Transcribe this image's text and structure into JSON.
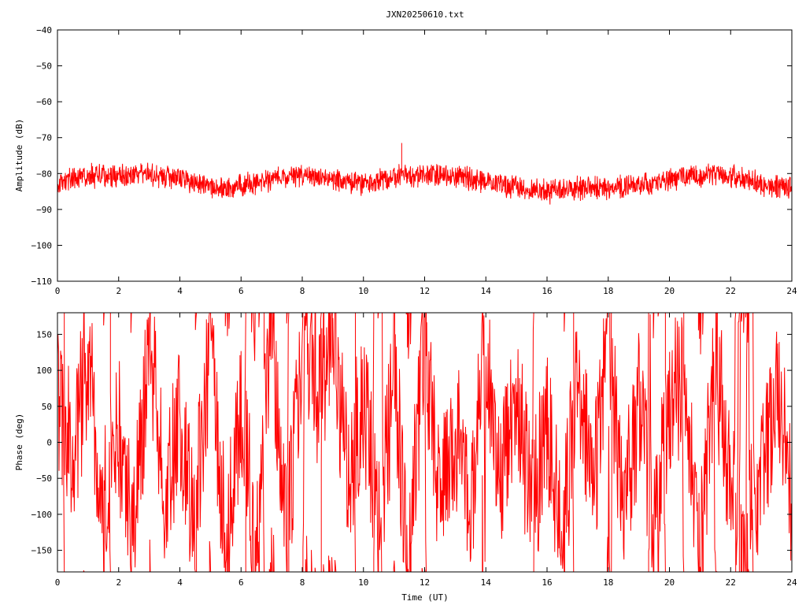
{
  "page_title": "JXN20250610.txt",
  "chart_data": [
    {
      "type": "line",
      "title": "",
      "xlabel": "",
      "ylabel": "Amplitude (dB)",
      "xlim": [
        0,
        24
      ],
      "ylim": [
        -110,
        -40
      ],
      "x_ticks": [
        0,
        2,
        4,
        6,
        8,
        10,
        12,
        14,
        16,
        18,
        20,
        22,
        24
      ],
      "x_tick_labels": [
        "0",
        "2",
        "4",
        "6",
        "8",
        "10",
        "12",
        "14",
        "16",
        "18",
        "20",
        "22",
        "24"
      ],
      "y_ticks": [
        -40,
        -50,
        -60,
        -70,
        -80,
        -90,
        -100,
        -110
      ],
      "y_tick_labels": [
        "−40",
        "−50",
        "−60",
        "−70",
        "−80",
        "−90",
        "−100",
        "−110"
      ],
      "grid": false,
      "legend": "none",
      "series_color": "#ff0000",
      "series": [
        {
          "x": [
            0,
            0.5,
            1,
            1.5,
            2,
            2.5,
            3,
            3.5,
            4,
            4.5,
            5,
            5.5,
            6,
            6.5,
            7,
            7.5,
            8,
            8.5,
            9,
            9.5,
            10,
            10.5,
            11,
            11.5,
            12,
            12.5,
            13,
            13.5,
            14,
            14.5,
            15,
            15.5,
            16,
            16.5,
            17,
            17.5,
            18,
            18.5,
            19,
            19.5,
            20,
            20.5,
            21,
            21.5,
            22,
            22.5,
            23,
            23.5,
            24
          ],
          "center": [
            -82,
            -81.5,
            -81,
            -80.5,
            -80.5,
            -80.5,
            -80.5,
            -81,
            -81.5,
            -82.5,
            -83.5,
            -84,
            -83.5,
            -82.5,
            -81.5,
            -81,
            -80.5,
            -81,
            -82,
            -82.5,
            -82.5,
            -82,
            -81,
            -80.5,
            -80.5,
            -80.5,
            -81,
            -81.5,
            -82,
            -83,
            -84,
            -84.5,
            -85,
            -84.5,
            -84,
            -84,
            -84,
            -84,
            -83.5,
            -83,
            -82,
            -81,
            -80.5,
            -80,
            -80.5,
            -81.5,
            -83,
            -84,
            -84
          ],
          "band": [
            {
              "range": [
                0,
                24
              ],
              "half_width": 3
            }
          ],
          "peak": {
            "x": 11.25,
            "y": -71.5
          }
        }
      ]
    },
    {
      "type": "line",
      "title": "",
      "xlabel": "Time (UT)",
      "ylabel": "Phase (deg)",
      "xlim": [
        0,
        24
      ],
      "ylim": [
        -180,
        180
      ],
      "x_ticks": [
        0,
        2,
        4,
        6,
        8,
        10,
        12,
        14,
        16,
        18,
        20,
        22,
        24
      ],
      "x_tick_labels": [
        "0",
        "2",
        "4",
        "6",
        "8",
        "10",
        "12",
        "14",
        "16",
        "18",
        "20",
        "22",
        "24"
      ],
      "y_ticks": [
        150,
        100,
        50,
        0,
        -50,
        -100,
        -150
      ],
      "y_tick_labels": [
        "150",
        "100",
        "50",
        "0",
        "−50",
        "−100",
        "−150"
      ],
      "grid": false,
      "legend": "none",
      "series_color": "#ff0000",
      "series": [
        {
          "x": [
            0,
            0.5,
            1,
            1.5,
            2,
            2.5,
            3,
            3.5,
            4,
            4.5,
            5,
            5.5,
            6,
            6.5,
            7,
            7.5,
            8,
            8.5,
            9,
            9.5,
            10,
            10.5,
            11,
            11.5,
            12,
            12.5,
            13,
            13.5,
            14,
            14.5,
            15,
            15.5,
            16,
            16.5,
            17,
            17.5,
            18,
            18.5,
            19,
            19.5,
            20,
            20.5,
            21,
            21.5,
            22,
            22.5,
            23,
            23.5,
            24
          ],
          "y": [
            60,
            -20,
            110,
            -90,
            20,
            -130,
            130,
            -60,
            30,
            -110,
            150,
            -150,
            60,
            -170,
            170,
            -140,
            160,
            60,
            120,
            -50,
            70,
            -120,
            90,
            -160,
            140,
            -90,
            20,
            -70,
            100,
            -40,
            80,
            -110,
            40,
            -130,
            90,
            -60,
            130,
            -100,
            50,
            -120,
            40,
            110,
            -150,
            120,
            -60,
            -130,
            -70,
            100,
            -100
          ]
        }
      ]
    }
  ]
}
